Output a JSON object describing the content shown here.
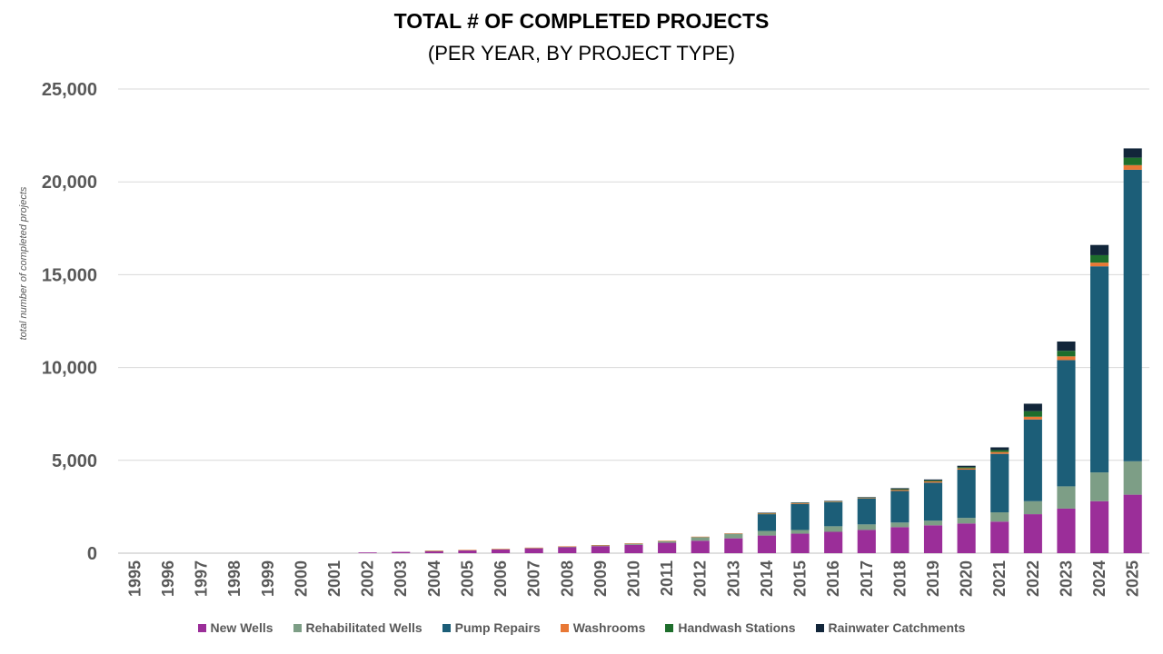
{
  "chart_data": {
    "type": "bar",
    "stacked": true,
    "title": "TOTAL # OF COMPLETED PROJECTS",
    "subtitle": "(PER YEAR, BY PROJECT TYPE)",
    "xlabel": "",
    "ylabel": "total number of completed projects",
    "ylim": [
      0,
      25000
    ],
    "yticks": [
      0,
      5000,
      10000,
      15000,
      20000,
      25000
    ],
    "ytick_labels": [
      "0",
      "5,000",
      "10,000",
      "15,000",
      "20,000",
      "25,000"
    ],
    "grid": true,
    "legend_position": "bottom",
    "categories": [
      "1995",
      "1996",
      "1997",
      "1998",
      "1999",
      "2000",
      "2001",
      "2002",
      "2003",
      "2004",
      "2005",
      "2006",
      "2007",
      "2008",
      "2009",
      "2010",
      "2011",
      "2012",
      "2013",
      "2014",
      "2015",
      "2016",
      "2017",
      "2018",
      "2019",
      "2020",
      "2021",
      "2022",
      "2023",
      "2024",
      "2025"
    ],
    "series": [
      {
        "name": "New Wells",
        "color": "#9b2e99",
        "values": [
          0,
          0,
          0,
          0,
          0,
          0,
          0,
          40,
          70,
          110,
          150,
          200,
          260,
          320,
          380,
          450,
          560,
          670,
          800,
          950,
          1050,
          1150,
          1250,
          1400,
          1500,
          1600,
          1700,
          2100,
          2400,
          2800,
          3150
        ]
      },
      {
        "name": "Rehabilitated Wells",
        "color": "#7d9e86",
        "values": [
          0,
          0,
          0,
          0,
          0,
          0,
          0,
          0,
          0,
          10,
          15,
          20,
          30,
          40,
          50,
          70,
          100,
          200,
          250,
          250,
          200,
          300,
          300,
          250,
          250,
          300,
          500,
          700,
          1200,
          1550,
          1800
        ]
      },
      {
        "name": "Pump Repairs",
        "color": "#1c5e78",
        "values": [
          0,
          0,
          0,
          0,
          0,
          0,
          0,
          0,
          0,
          0,
          0,
          0,
          0,
          0,
          0,
          0,
          0,
          0,
          0,
          900,
          1400,
          1300,
          1400,
          1700,
          2050,
          2600,
          3150,
          4400,
          6800,
          11100,
          15700
        ]
      },
      {
        "name": "Washrooms",
        "color": "#e87835",
        "values": [
          0,
          0,
          0,
          0,
          0,
          0,
          0,
          0,
          0,
          20,
          10,
          10,
          10,
          10,
          10,
          10,
          10,
          20,
          20,
          40,
          40,
          30,
          30,
          60,
          70,
          70,
          100,
          150,
          200,
          200,
          250
        ]
      },
      {
        "name": "Handwash Stations",
        "color": "#1e6e2c",
        "values": [
          0,
          0,
          0,
          0,
          0,
          0,
          0,
          0,
          0,
          0,
          0,
          0,
          0,
          0,
          0,
          0,
          0,
          0,
          0,
          20,
          20,
          20,
          20,
          40,
          50,
          60,
          100,
          300,
          300,
          400,
          400
        ]
      },
      {
        "name": "Rainwater Catchments",
        "color": "#12263a",
        "values": [
          0,
          0,
          0,
          0,
          0,
          0,
          0,
          0,
          0,
          0,
          0,
          0,
          0,
          0,
          0,
          0,
          0,
          0,
          0,
          20,
          20,
          20,
          20,
          50,
          50,
          80,
          150,
          400,
          500,
          550,
          500
        ]
      }
    ]
  }
}
